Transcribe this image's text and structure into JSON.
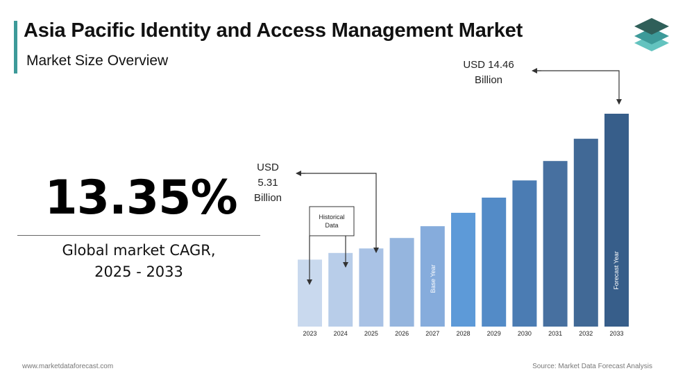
{
  "header": {
    "title": "Asia Pacific Identity and Access Management Market",
    "subtitle": "Market Size Overview"
  },
  "logo": {
    "icon": "stacked-layers-logo-icon",
    "colors": [
      "#2f5f59",
      "#3d9a99",
      "#63c3bf"
    ]
  },
  "kpi": {
    "value": "13.35%",
    "label_line1": "Global market CAGR,",
    "label_line2": "2025 - 2033"
  },
  "chart_data": {
    "type": "bar",
    "categories": [
      "2023",
      "2024",
      "2025",
      "2026",
      "2027",
      "2028",
      "2029",
      "2030",
      "2031",
      "2032",
      "2033"
    ],
    "values": [
      4.55,
      5.0,
      5.31,
      6.02,
      6.82,
      7.73,
      8.76,
      9.93,
      11.25,
      12.76,
      14.46
    ],
    "colors": [
      "#c9d9ee",
      "#b8cde9",
      "#a9c2e5",
      "#95b5de",
      "#86acdc",
      "#5d9ad8",
      "#538bc7",
      "#4b7cb3",
      "#4770a0",
      "#416996",
      "#375e8a"
    ],
    "ylim": [
      0,
      15
    ],
    "grid": false,
    "annotations": {
      "start_line1": "USD",
      "start_line2": "5.31",
      "start_line3": "Billion",
      "end_line1": "USD 14.46",
      "end_line2": "Billion",
      "historical_line1": "Historical",
      "historical_line2": "Data",
      "base_year": "Base Year",
      "forecast_year": "Forecast Year"
    }
  },
  "footer": {
    "website": "www.marketdataforecast.com",
    "source": "Source: Market Data Forecast Analysis"
  }
}
